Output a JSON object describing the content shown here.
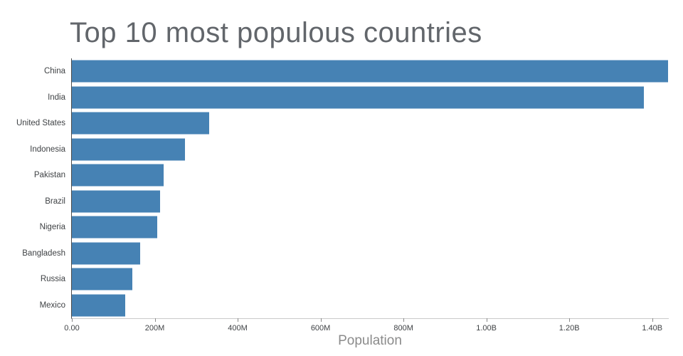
{
  "chart_data": {
    "type": "bar",
    "orientation": "horizontal",
    "title": "Top 10 most populous countries",
    "xlabel": "Population",
    "ylabel": "",
    "categories": [
      "China",
      "India",
      "United States",
      "Indonesia",
      "Pakistan",
      "Brazil",
      "Nigeria",
      "Bangladesh",
      "Russia",
      "Mexico"
    ],
    "values": [
      1439000000,
      1380000000,
      331000000,
      273500000,
      220900000,
      212600000,
      206100000,
      164700000,
      145900000,
      128900000
    ],
    "xlim": [
      0,
      1440000000
    ],
    "x_tick_values": [
      0,
      200000000,
      400000000,
      600000000,
      800000000,
      1000000000,
      1200000000,
      1400000000
    ],
    "x_tick_labels": [
      "0.00",
      "200M",
      "400M",
      "600M",
      "800M",
      "1.00B",
      "1.20B",
      "1.40B"
    ],
    "bar_color": "#4682b4",
    "grid": false,
    "legend": false
  }
}
